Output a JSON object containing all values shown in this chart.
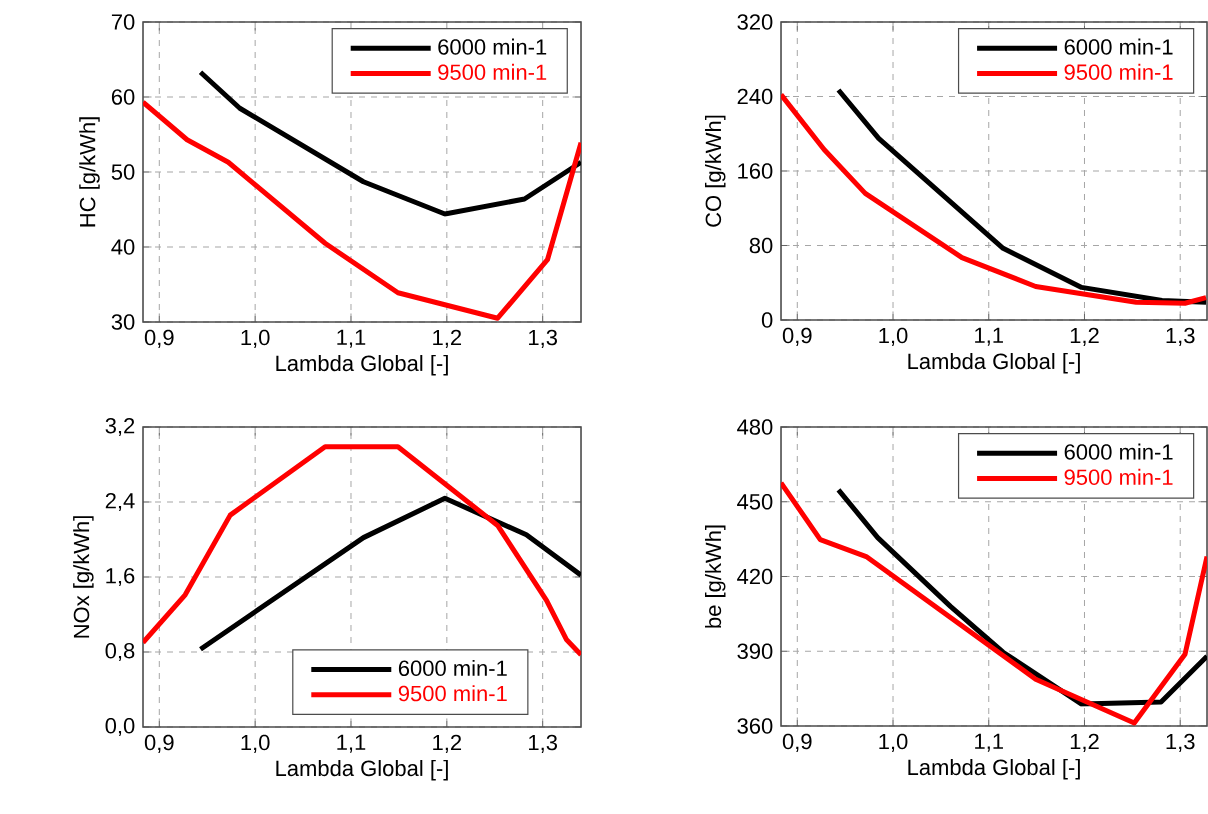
{
  "chart_data": [
    {
      "type": "line",
      "xlabel": "Lambda Global [-]",
      "ylabel": "HC [g/kWh]",
      "xlim": [
        0.883,
        1.34
      ],
      "ylim": [
        30,
        70
      ],
      "xticks": [
        {
          "value": 0.9,
          "label": "0,9"
        },
        {
          "value": 1.0,
          "label": "1,0"
        },
        {
          "value": 1.1,
          "label": "1,1"
        },
        {
          "value": 1.2,
          "label": "1,2"
        },
        {
          "value": 1.3,
          "label": "1,3"
        }
      ],
      "yticks": [
        30,
        40,
        50,
        60,
        70
      ],
      "grid": true,
      "legend": "top right",
      "series": [
        {
          "name": "6000 min-1",
          "color": "#000000",
          "x": [
            0.943,
            0.984,
            1.113,
            1.198,
            1.281,
            1.34
          ],
          "values": [
            63.3,
            58.5,
            48.7,
            44.4,
            46.4,
            51.3
          ]
        },
        {
          "name": "9500 min-1",
          "color": "#ff0000",
          "x": [
            0.883,
            0.929,
            0.972,
            1.073,
            1.149,
            1.253,
            1.305,
            1.34
          ],
          "values": [
            59.3,
            54.3,
            51.3,
            40.5,
            33.9,
            30.5,
            38.3,
            53.9
          ]
        }
      ]
    },
    {
      "type": "line",
      "xlabel": "Lambda Global [-]",
      "ylabel": "CO [g/kWh]",
      "xlim": [
        0.883,
        1.328
      ],
      "ylim": [
        0,
        320
      ],
      "xticks": [
        {
          "value": 0.9,
          "label": "0,9"
        },
        {
          "value": 1.0,
          "label": "1,0"
        },
        {
          "value": 1.1,
          "label": "1,1"
        },
        {
          "value": 1.2,
          "label": "1,2"
        },
        {
          "value": 1.3,
          "label": "1,3"
        }
      ],
      "yticks": [
        0,
        80,
        160,
        240,
        320
      ],
      "grid": true,
      "legend": "top right",
      "series": [
        {
          "name": "6000 min-1",
          "color": "#000000",
          "x": [
            0.943,
            0.985,
            1.115,
            1.197,
            1.281,
            1.327
          ],
          "values": [
            247,
            195,
            77,
            35,
            21,
            19
          ]
        },
        {
          "name": "9500 min-1",
          "color": "#ff0000",
          "x": [
            0.883,
            0.928,
            0.971,
            1.072,
            1.149,
            1.254,
            1.305,
            1.327
          ],
          "values": [
            242,
            183,
            136,
            67,
            36,
            19,
            18,
            24
          ]
        }
      ]
    },
    {
      "type": "line",
      "xlabel": "Lambda Global [-]",
      "ylabel": "NOx [g/kWh]",
      "xlim": [
        0.883,
        1.34
      ],
      "ylim": [
        0,
        3.2
      ],
      "xticks": [
        {
          "value": 0.9,
          "label": "0,9"
        },
        {
          "value": 1.0,
          "label": "1,0"
        },
        {
          "value": 1.1,
          "label": "1,1"
        },
        {
          "value": 1.2,
          "label": "1,2"
        },
        {
          "value": 1.3,
          "label": "1,3"
        }
      ],
      "yticks": [
        {
          "value": 0,
          "label": "0,0"
        },
        {
          "value": 0.8,
          "label": "0,8"
        },
        {
          "value": 1.6,
          "label": "1,6"
        },
        {
          "value": 2.4,
          "label": "2,4"
        },
        {
          "value": 3.2,
          "label": "3,2"
        }
      ],
      "grid": true,
      "legend": "bottom right",
      "series": [
        {
          "name": "6000 min-1",
          "color": "#000000",
          "x": [
            0.943,
            1.113,
            1.198,
            1.283,
            1.34
          ],
          "values": [
            0.83,
            2.02,
            2.44,
            2.05,
            1.62
          ]
        },
        {
          "name": "9500 min-1",
          "color": "#ff0000",
          "x": [
            0.883,
            0.927,
            0.974,
            1.073,
            1.149,
            1.253,
            1.304,
            1.325,
            1.34
          ],
          "values": [
            0.9,
            1.41,
            2.26,
            2.99,
            2.99,
            2.15,
            1.35,
            0.93,
            0.77
          ]
        }
      ]
    },
    {
      "type": "line",
      "xlabel": "Lambda Global [-]",
      "ylabel": "be [g/kWh]",
      "xlim": [
        0.883,
        1.328
      ],
      "ylim": [
        360,
        480
      ],
      "xticks": [
        {
          "value": 0.9,
          "label": "0,9"
        },
        {
          "value": 1.0,
          "label": "1,0"
        },
        {
          "value": 1.1,
          "label": "1,1"
        },
        {
          "value": 1.2,
          "label": "1,2"
        },
        {
          "value": 1.3,
          "label": "1,3"
        }
      ],
      "yticks": [
        360,
        390,
        420,
        450,
        480
      ],
      "grid": true,
      "legend": "top right",
      "series": [
        {
          "name": "6000 min-1",
          "color": "#000000",
          "x": [
            0.943,
            0.984,
            1.06,
            1.115,
            1.197,
            1.28,
            1.328
          ],
          "values": [
            454.8,
            435.6,
            408,
            389.6,
            368.8,
            369.6,
            388
          ]
        },
        {
          "name": "9500 min-1",
          "color": "#ff0000",
          "x": [
            0.883,
            0.924,
            0.972,
            1.149,
            1.252,
            1.305,
            1.328
          ],
          "values": [
            457.6,
            434.8,
            428,
            378.8,
            361.2,
            388.8,
            428
          ]
        }
      ]
    }
  ]
}
